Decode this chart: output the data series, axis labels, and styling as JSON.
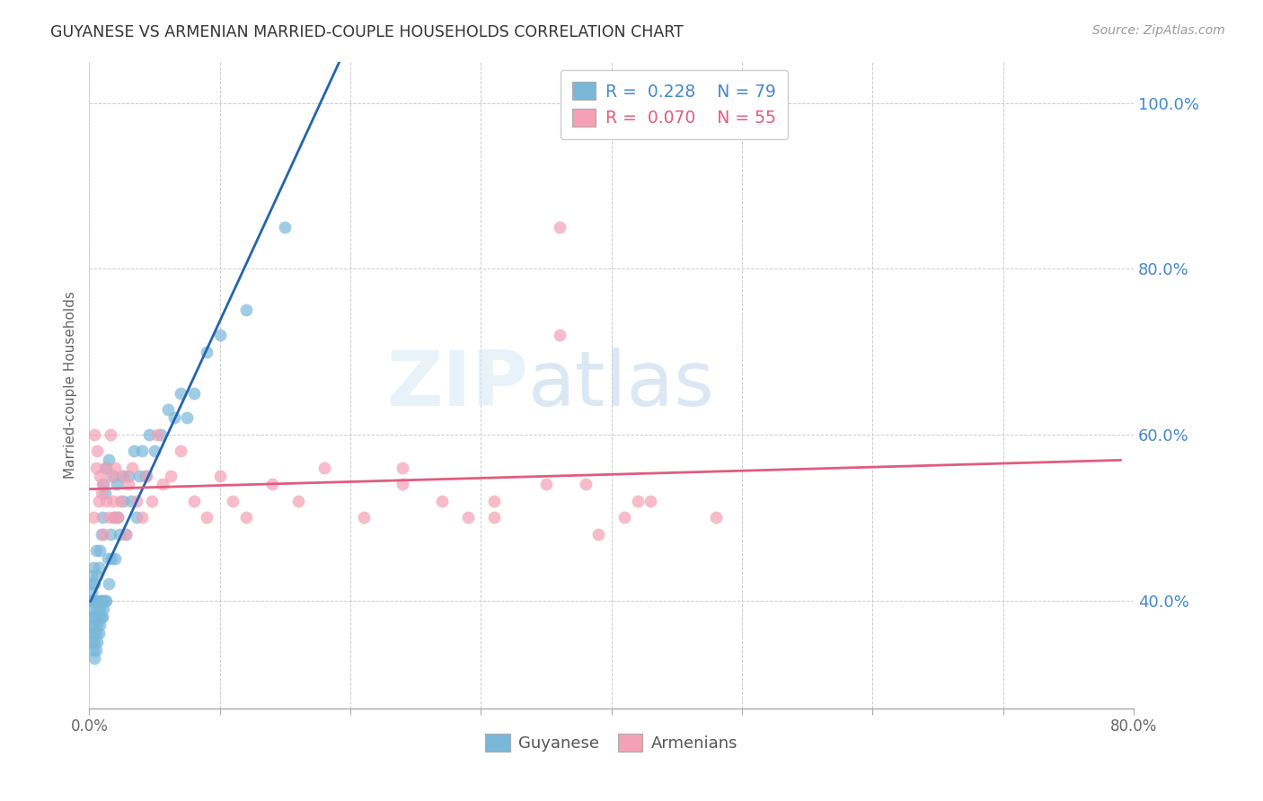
{
  "title": "GUYANESE VS ARMENIAN MARRIED-COUPLE HOUSEHOLDS CORRELATION CHART",
  "source": "Source: ZipAtlas.com",
  "ylabel": "Married-couple Households",
  "ytick_labels": [
    "100.0%",
    "80.0%",
    "60.0%",
    "40.0%"
  ],
  "ytick_values": [
    1.0,
    0.8,
    0.6,
    0.4
  ],
  "xlim": [
    0.0,
    0.8
  ],
  "ylim": [
    0.27,
    1.05
  ],
  "legend_R1": "0.228",
  "legend_N1": "79",
  "legend_R2": "0.070",
  "legend_N2": "55",
  "watermark_zip": "ZIP",
  "watermark_atlas": "atlas",
  "guyanese_color": "#7ab8d9",
  "armenian_color": "#f4a0b5",
  "guyanese_line_color": "#2563ae",
  "armenian_line_color": "#e05c80",
  "background_color": "#ffffff",
  "grid_color": "#cccccc",
  "title_color": "#333333",
  "right_tick_color": "#4488cc",
  "guyanese_x": [
    0.001,
    0.001,
    0.001,
    0.001,
    0.002,
    0.002,
    0.002,
    0.002,
    0.002,
    0.003,
    0.003,
    0.003,
    0.003,
    0.003,
    0.004,
    0.004,
    0.004,
    0.004,
    0.005,
    0.005,
    0.005,
    0.005,
    0.005,
    0.006,
    0.006,
    0.006,
    0.006,
    0.007,
    0.007,
    0.007,
    0.007,
    0.008,
    0.008,
    0.008,
    0.009,
    0.009,
    0.009,
    0.01,
    0.01,
    0.01,
    0.011,
    0.011,
    0.012,
    0.012,
    0.013,
    0.013,
    0.014,
    0.015,
    0.015,
    0.016,
    0.017,
    0.018,
    0.019,
    0.02,
    0.021,
    0.022,
    0.023,
    0.025,
    0.026,
    0.028,
    0.03,
    0.032,
    0.034,
    0.036,
    0.038,
    0.04,
    0.043,
    0.046,
    0.05,
    0.055,
    0.06,
    0.065,
    0.07,
    0.075,
    0.08,
    0.09,
    0.1,
    0.12,
    0.15
  ],
  "guyanese_y": [
    0.36,
    0.38,
    0.4,
    0.42,
    0.35,
    0.37,
    0.39,
    0.41,
    0.43,
    0.34,
    0.36,
    0.38,
    0.4,
    0.44,
    0.33,
    0.35,
    0.37,
    0.42,
    0.34,
    0.36,
    0.38,
    0.4,
    0.46,
    0.35,
    0.37,
    0.39,
    0.43,
    0.36,
    0.38,
    0.4,
    0.44,
    0.37,
    0.39,
    0.46,
    0.38,
    0.4,
    0.48,
    0.38,
    0.4,
    0.5,
    0.39,
    0.54,
    0.4,
    0.53,
    0.4,
    0.56,
    0.45,
    0.42,
    0.57,
    0.48,
    0.45,
    0.55,
    0.5,
    0.45,
    0.54,
    0.5,
    0.48,
    0.55,
    0.52,
    0.48,
    0.55,
    0.52,
    0.58,
    0.5,
    0.55,
    0.58,
    0.55,
    0.6,
    0.58,
    0.6,
    0.63,
    0.62,
    0.65,
    0.62,
    0.65,
    0.7,
    0.72,
    0.75,
    0.85
  ],
  "armenian_x": [
    0.003,
    0.004,
    0.005,
    0.006,
    0.007,
    0.008,
    0.009,
    0.01,
    0.011,
    0.012,
    0.013,
    0.015,
    0.016,
    0.017,
    0.018,
    0.019,
    0.02,
    0.022,
    0.024,
    0.026,
    0.028,
    0.03,
    0.033,
    0.036,
    0.04,
    0.044,
    0.048,
    0.052,
    0.056,
    0.062,
    0.07,
    0.08,
    0.09,
    0.1,
    0.11,
    0.12,
    0.14,
    0.16,
    0.18,
    0.21,
    0.24,
    0.27,
    0.31,
    0.35,
    0.39,
    0.43,
    0.48,
    0.38,
    0.41,
    0.36,
    0.29,
    0.24,
    0.31,
    0.36,
    0.42
  ],
  "armenian_y": [
    0.5,
    0.6,
    0.56,
    0.58,
    0.52,
    0.55,
    0.53,
    0.54,
    0.48,
    0.56,
    0.52,
    0.5,
    0.6,
    0.55,
    0.52,
    0.5,
    0.56,
    0.5,
    0.52,
    0.55,
    0.48,
    0.54,
    0.56,
    0.52,
    0.5,
    0.55,
    0.52,
    0.6,
    0.54,
    0.55,
    0.58,
    0.52,
    0.5,
    0.55,
    0.52,
    0.5,
    0.54,
    0.52,
    0.56,
    0.5,
    0.54,
    0.52,
    0.5,
    0.54,
    0.48,
    0.52,
    0.5,
    0.54,
    0.5,
    0.72,
    0.5,
    0.56,
    0.52,
    0.85,
    0.52
  ],
  "figsize": [
    14.06,
    8.92
  ],
  "dpi": 100
}
